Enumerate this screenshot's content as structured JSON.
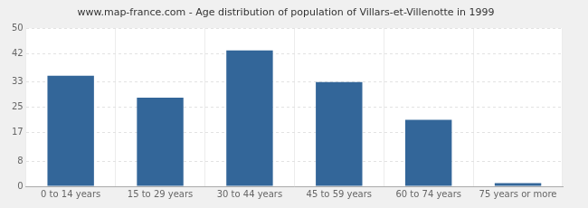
{
  "chart_data": {
    "type": "bar",
    "title": "www.map-france.com - Age distribution of population of Villars-et-Villenotte in 1999",
    "categories": [
      "0 to 14 years",
      "15 to 29 years",
      "30 to 44 years",
      "45 to 59 years",
      "60 to 74 years",
      "75 years or more"
    ],
    "values": [
      35,
      28,
      43,
      33,
      21,
      1
    ],
    "color": "#336699",
    "ylim": [
      0,
      50
    ],
    "yticks": [
      0,
      8,
      17,
      25,
      33,
      42,
      50
    ],
    "grid": true
  }
}
